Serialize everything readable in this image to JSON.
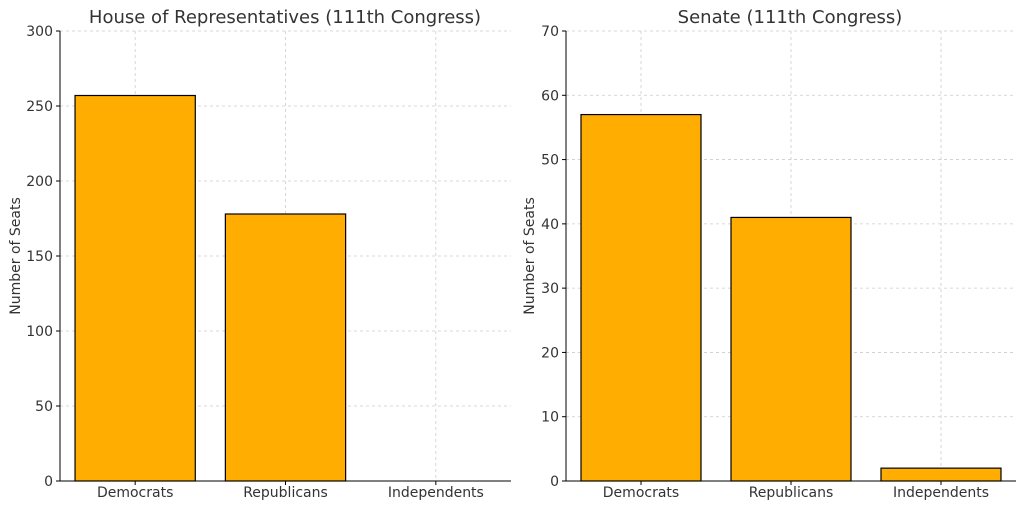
{
  "chart_data": [
    {
      "type": "bar",
      "title": "House of Representatives (111th Congress)",
      "xlabel": "",
      "ylabel": "Number of Seats",
      "categories": [
        "Democrats",
        "Republicans",
        "Independents"
      ],
      "values": [
        257,
        178,
        0
      ],
      "ylim": [
        0,
        300
      ],
      "yticks": [
        0,
        50,
        100,
        150,
        200,
        250,
        300
      ],
      "grid": true,
      "bar_color": "#ffad00",
      "edge_color": "#000000"
    },
    {
      "type": "bar",
      "title": "Senate (111th Congress)",
      "xlabel": "",
      "ylabel": "Number of Seats",
      "categories": [
        "Democrats",
        "Republicans",
        "Independents"
      ],
      "values": [
        57,
        41,
        2
      ],
      "ylim": [
        0,
        70
      ],
      "yticks": [
        0,
        10,
        20,
        30,
        40,
        50,
        60,
        70
      ],
      "grid": true,
      "bar_color": "#ffad00",
      "edge_color": "#000000"
    }
  ]
}
